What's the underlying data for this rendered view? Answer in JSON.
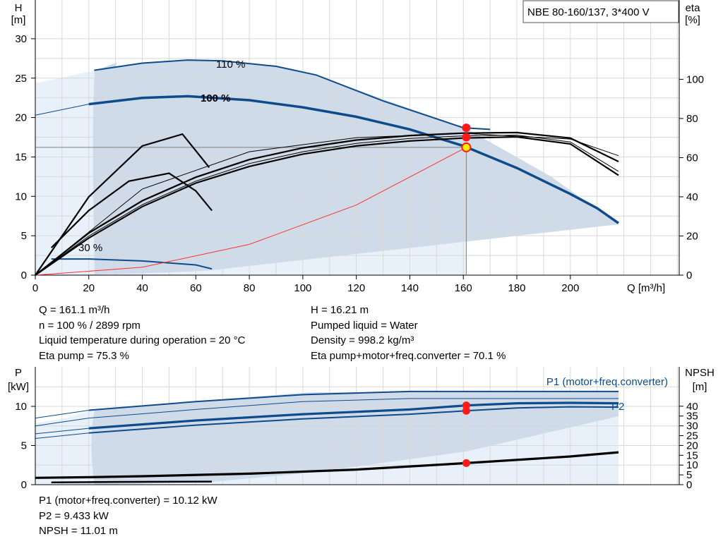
{
  "chart_data": [
    {
      "type": "line",
      "title": "NBE 80-160/137, 3*400 V",
      "ylabel": "H",
      "yunit": "[m]",
      "y2label": "eta",
      "y2unit": "[%]",
      "xlabel": "Q [m³/h]",
      "xlim": [
        0,
        240
      ],
      "ylim": [
        0,
        31.5
      ],
      "y2lim": [
        0,
        121.3
      ],
      "xticks": [
        "0",
        "20",
        "40",
        "60",
        "80",
        "100",
        "120",
        "140",
        "160",
        "180",
        "200"
      ],
      "yticks": [
        "0",
        "5",
        "10",
        "15",
        "20",
        "25",
        "30"
      ],
      "y2ticks": [
        "0",
        "20",
        "40",
        "60",
        "80",
        "100"
      ],
      "operating_point": {
        "q": 161.1,
        "h": 16.21
      },
      "series": [
        {
          "name": "110 %",
          "role": "head",
          "x": [
            0,
            22,
            40,
            57,
            70,
            90,
            105,
            130,
            160,
            170
          ],
          "y": [
            24.5,
            26,
            26.9,
            27.3,
            27.2,
            26.5,
            25.4,
            22.1,
            18.7,
            18.5
          ]
        },
        {
          "name": "100 %",
          "role": "head",
          "x": [
            0,
            20,
            40,
            57,
            80,
            100,
            120,
            140,
            160,
            180,
            200,
            210,
            218
          ],
          "y": [
            20.3,
            21.7,
            22.5,
            22.7,
            22.2,
            21.3,
            20.1,
            18.5,
            16.4,
            13.6,
            10.3,
            8.5,
            6.6
          ]
        },
        {
          "name": "30 %",
          "role": "head",
          "x": [
            6,
            20,
            40,
            60,
            66
          ],
          "y": [
            2.05,
            2.05,
            1.8,
            1.3,
            0.8
          ]
        },
        {
          "name": "",
          "role": "system",
          "x": [
            0,
            40,
            80,
            120,
            161.1
          ],
          "y": [
            0,
            1,
            3.9,
            8.9,
            16.21
          ]
        },
        {
          "role": "eta",
          "x": [
            0,
            20,
            40,
            60,
            80,
            100,
            120,
            140,
            160,
            180,
            200,
            218
          ],
          "y": [
            0,
            21.5,
            38,
            50,
            59,
            65,
            69,
            71.3,
            72.5,
            72.8,
            70,
            58
          ]
        },
        {
          "role": "eta",
          "x": [
            0,
            20,
            40,
            60,
            80,
            100,
            120,
            140,
            160,
            180,
            200,
            218
          ],
          "y": [
            0,
            20,
            36,
            48,
            57,
            63,
            67.3,
            69.8,
            71.1,
            71.5,
            68,
            53
          ]
        },
        {
          "role": "eta",
          "x": [
            0,
            20,
            40,
            60,
            80,
            100,
            120,
            140,
            160,
            180,
            200,
            218
          ],
          "y": [
            0,
            19,
            35,
            47,
            55.5,
            61.8,
            66,
            68.5,
            70,
            70.6,
            67,
            51
          ]
        },
        {
          "role": "eta",
          "x": [
            6,
            20,
            35,
            50,
            60,
            66
          ],
          "y": [
            14,
            33,
            48,
            52,
            43,
            33
          ]
        },
        {
          "role": "eta",
          "x": [
            0,
            20,
            40,
            55,
            65
          ],
          "y": [
            0,
            40,
            66,
            72,
            55
          ]
        },
        {
          "role": "eta",
          "x": [
            0,
            40,
            80,
            120,
            160,
            200,
            218
          ],
          "y": [
            0,
            44,
            63,
            70.2,
            72.4,
            69.5,
            61
          ]
        }
      ],
      "points": [
        {
          "x": 161.1,
          "y": 18.7
        },
        {
          "x": 161.1,
          "y": 17.5
        },
        {
          "x": 161.1,
          "y": 16.21
        }
      ]
    },
    {
      "type": "line",
      "ylabel": "P",
      "yunit": "[kW]",
      "y2label": "NPSH",
      "y2unit": "[m]",
      "xlim": [
        0,
        240
      ],
      "ylim": [
        0,
        12.5
      ],
      "y2lim": [
        0,
        50
      ],
      "yticks": [
        "0",
        "5",
        "10"
      ],
      "y2ticks": [
        "0",
        "5",
        "10",
        "15",
        "20",
        "25",
        "30",
        "35",
        "40"
      ],
      "series": [
        {
          "name": "P1 (motor+freq.converter)",
          "role": "power",
          "x": [
            0,
            20,
            60,
            100,
            140,
            180,
            218
          ],
          "y": [
            8.5,
            9.5,
            10.6,
            11.5,
            11.9,
            11.9,
            11.9
          ]
        },
        {
          "name": "",
          "role": "power",
          "x": [
            0,
            20,
            60,
            100,
            140,
            180,
            218
          ],
          "y": [
            7.5,
            8.5,
            9.6,
            10.6,
            11.0,
            11.0,
            11.0
          ]
        },
        {
          "name": "",
          "role": "power",
          "x": [
            0,
            20,
            60,
            100,
            140,
            161.1,
            180,
            200,
            218
          ],
          "y": [
            6.5,
            7.2,
            8.2,
            9.0,
            9.6,
            10.12,
            10.4,
            10.45,
            10.4
          ]
        },
        {
          "name": "P2",
          "role": "power",
          "x": [
            0,
            20,
            60,
            100,
            140,
            161.1,
            180,
            200,
            218
          ],
          "y": [
            5.9,
            6.6,
            7.6,
            8.4,
            9.0,
            9.433,
            9.8,
            9.95,
            9.9
          ]
        },
        {
          "name": "",
          "role": "npsh",
          "x": [
            0,
            20,
            40,
            80,
            120,
            161.1,
            200,
            218
          ],
          "y": [
            3.5,
            3.8,
            4.3,
            5.6,
            7.7,
            11.01,
            14.4,
            16.5
          ]
        },
        {
          "name": "",
          "role": "npsh",
          "x": [
            6,
            30,
            66
          ],
          "y": [
            1.2,
            1.4,
            1.6
          ]
        }
      ],
      "points": [
        {
          "x": 161.1,
          "y": 10.12
        },
        {
          "x": 161.1,
          "y": 9.433
        },
        {
          "x": 161.1,
          "y": 2.75
        }
      ]
    }
  ],
  "info_top_left": [
    "Q = 161.1 m³/h",
    "n = 100 % / 2899 rpm",
    "Liquid temperature during operation = 20 °C",
    "Eta pump = 75.3 %"
  ],
  "info_top_right": [
    "H = 16.21 m",
    "Pumped liquid = Water",
    "Density = 998.2 kg/m³",
    "Eta pump+motor+freq.converter = 70.1 %"
  ],
  "info_bottom": [
    "P1 (motor+freq.converter) = 10.12 kW",
    "P2 = 9.433 kW",
    "NPSH = 11.01 m"
  ],
  "colors": {
    "curve_blue": "#0d4b8c",
    "region_fill": "#cfdbe8",
    "region_light": "#e8f1fa",
    "system": "#ff3030",
    "point": "#ff1a1a",
    "grid": "#d8d8d8"
  }
}
